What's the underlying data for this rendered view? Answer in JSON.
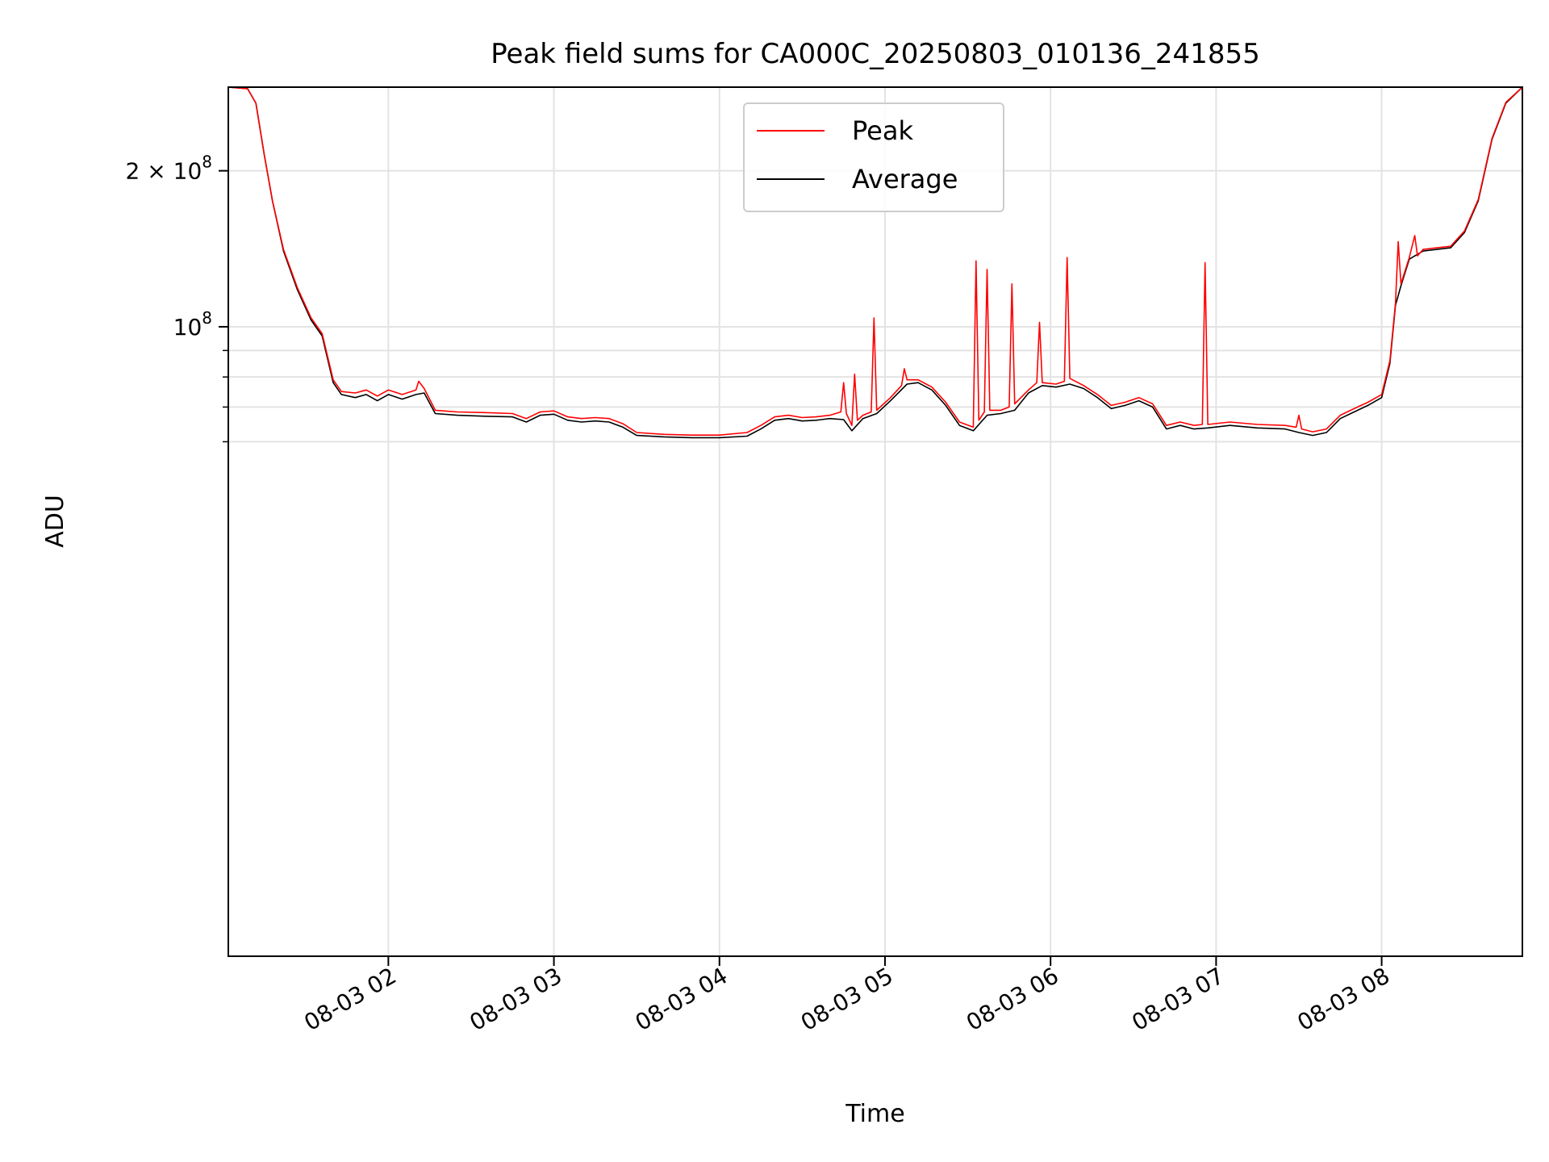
{
  "chart_data": {
    "type": "line",
    "title": "Peak field sums for CA000C_20250803_010136_241855",
    "xlabel": "Time",
    "ylabel": "ADU",
    "yscale": "log",
    "xlim": [
      "2025-08-03 01:02",
      "2025-08-03 08:51"
    ],
    "ylim": [
      6100000,
      290000000
    ],
    "grid": true,
    "legend_position": "upper-center",
    "colors": {
      "Peak": "#ff0000",
      "Average": "#000000"
    },
    "x_tick_labels": [
      "08-03 02",
      "08-03 03",
      "08-03 04",
      "08-03 05",
      "08-03 06",
      "08-03 07",
      "08-03 08"
    ],
    "x_ticks": [
      "2025-08-03 02:00",
      "2025-08-03 03:00",
      "2025-08-03 04:00",
      "2025-08-03 05:00",
      "2025-08-03 06:00",
      "2025-08-03 07:00",
      "2025-08-03 08:00"
    ],
    "y_tick_labels": [
      {
        "value": 100000000,
        "mantissa": "",
        "base": "10",
        "exp": "8"
      },
      {
        "value": 200000000,
        "mantissa": "2 × ",
        "base": "10",
        "exp": "8"
      }
    ],
    "y_minor_ticks": [
      60000000,
      70000000,
      80000000,
      90000000
    ],
    "series": [
      {
        "name": "Average",
        "points": [
          [
            "2025-08-03 01:02",
            290000000
          ],
          [
            "2025-08-03 01:09",
            288000000
          ],
          [
            "2025-08-03 01:12",
            270000000
          ],
          [
            "2025-08-03 01:15",
            215000000
          ],
          [
            "2025-08-03 01:18",
            175000000
          ],
          [
            "2025-08-03 01:22",
            140000000
          ],
          [
            "2025-08-03 01:27",
            118000000
          ],
          [
            "2025-08-03 01:32",
            103000000
          ],
          [
            "2025-08-03 01:36",
            96000000
          ],
          [
            "2025-08-03 01:40",
            78000000
          ],
          [
            "2025-08-03 01:43",
            74000000
          ],
          [
            "2025-08-03 01:48",
            73000000
          ],
          [
            "2025-08-03 01:52",
            74000000
          ],
          [
            "2025-08-03 01:56",
            72000000
          ],
          [
            "2025-08-03 02:00",
            74000000
          ],
          [
            "2025-08-03 02:05",
            72500000
          ],
          [
            "2025-08-03 02:10",
            74000000
          ],
          [
            "2025-08-03 02:13",
            74500000
          ],
          [
            "2025-08-03 02:17",
            68000000
          ],
          [
            "2025-08-03 02:25",
            67500000
          ],
          [
            "2025-08-03 02:35",
            67200000
          ],
          [
            "2025-08-03 02:45",
            67000000
          ],
          [
            "2025-08-03 02:50",
            65500000
          ],
          [
            "2025-08-03 02:55",
            67500000
          ],
          [
            "2025-08-03 03:00",
            67800000
          ],
          [
            "2025-08-03 03:05",
            66000000
          ],
          [
            "2025-08-03 03:10",
            65500000
          ],
          [
            "2025-08-03 03:15",
            65800000
          ],
          [
            "2025-08-03 03:20",
            65500000
          ],
          [
            "2025-08-03 03:25",
            64000000
          ],
          [
            "2025-08-03 03:30",
            61700000
          ],
          [
            "2025-08-03 03:40",
            61300000
          ],
          [
            "2025-08-03 03:50",
            61100000
          ],
          [
            "2025-08-03 04:00",
            61100000
          ],
          [
            "2025-08-03 04:10",
            61500000
          ],
          [
            "2025-08-03 04:15",
            63500000
          ],
          [
            "2025-08-03 04:20",
            66000000
          ],
          [
            "2025-08-03 04:25",
            66500000
          ],
          [
            "2025-08-03 04:30",
            65800000
          ],
          [
            "2025-08-03 04:35",
            66000000
          ],
          [
            "2025-08-03 04:40",
            66500000
          ],
          [
            "2025-08-03 04:45",
            66200000
          ],
          [
            "2025-08-03 04:48",
            63000000
          ],
          [
            "2025-08-03 04:52",
            66500000
          ],
          [
            "2025-08-03 04:57",
            68000000
          ],
          [
            "2025-08-03 05:02",
            72000000
          ],
          [
            "2025-08-03 05:08",
            77500000
          ],
          [
            "2025-08-03 05:12",
            78000000
          ],
          [
            "2025-08-03 05:17",
            75500000
          ],
          [
            "2025-08-03 05:22",
            70500000
          ],
          [
            "2025-08-03 05:27",
            64500000
          ],
          [
            "2025-08-03 05:32",
            63000000
          ],
          [
            "2025-08-03 05:37",
            67500000
          ],
          [
            "2025-08-03 05:42",
            68000000
          ],
          [
            "2025-08-03 05:47",
            69000000
          ],
          [
            "2025-08-03 05:52",
            74500000
          ],
          [
            "2025-08-03 05:57",
            77000000
          ],
          [
            "2025-08-03 06:02",
            76500000
          ],
          [
            "2025-08-03 06:07",
            77500000
          ],
          [
            "2025-08-03 06:12",
            76000000
          ],
          [
            "2025-08-03 06:17",
            73000000
          ],
          [
            "2025-08-03 06:22",
            69500000
          ],
          [
            "2025-08-03 06:27",
            70500000
          ],
          [
            "2025-08-03 06:32",
            72000000
          ],
          [
            "2025-08-03 06:37",
            70000000
          ],
          [
            "2025-08-03 06:42",
            63500000
          ],
          [
            "2025-08-03 06:47",
            64500000
          ],
          [
            "2025-08-03 06:52",
            63500000
          ],
          [
            "2025-08-03 06:57",
            63800000
          ],
          [
            "2025-08-03 07:05",
            64500000
          ],
          [
            "2025-08-03 07:15",
            63800000
          ],
          [
            "2025-08-03 07:25",
            63500000
          ],
          [
            "2025-08-03 07:30",
            62500000
          ],
          [
            "2025-08-03 07:35",
            61700000
          ],
          [
            "2025-08-03 07:40",
            62500000
          ],
          [
            "2025-08-03 07:45",
            66500000
          ],
          [
            "2025-08-03 07:50",
            68500000
          ],
          [
            "2025-08-03 07:55",
            70500000
          ],
          [
            "2025-08-03 08:00",
            73000000
          ],
          [
            "2025-08-03 08:03",
            85000000
          ],
          [
            "2025-08-03 08:05",
            110000000
          ],
          [
            "2025-08-03 08:07",
            120000000
          ],
          [
            "2025-08-03 08:10",
            135000000
          ],
          [
            "2025-08-03 08:15",
            140000000
          ],
          [
            "2025-08-03 08:20",
            141000000
          ],
          [
            "2025-08-03 08:25",
            142000000
          ],
          [
            "2025-08-03 08:30",
            152000000
          ],
          [
            "2025-08-03 08:35",
            175000000
          ],
          [
            "2025-08-03 08:40",
            230000000
          ],
          [
            "2025-08-03 08:45",
            270000000
          ],
          [
            "2025-08-03 08:51",
            290000000
          ]
        ]
      },
      {
        "name": "Peak",
        "points": [
          [
            "2025-08-03 01:02",
            290000000
          ],
          [
            "2025-08-03 01:09",
            288000000
          ],
          [
            "2025-08-03 01:12",
            270000000
          ],
          [
            "2025-08-03 01:15",
            215000000
          ],
          [
            "2025-08-03 01:18",
            175000000
          ],
          [
            "2025-08-03 01:22",
            141000000
          ],
          [
            "2025-08-03 01:27",
            119000000
          ],
          [
            "2025-08-03 01:32",
            104000000
          ],
          [
            "2025-08-03 01:36",
            97000000
          ],
          [
            "2025-08-03 01:40",
            79000000
          ],
          [
            "2025-08-03 01:43",
            75000000
          ],
          [
            "2025-08-03 01:48",
            74500000
          ],
          [
            "2025-08-03 01:52",
            75500000
          ],
          [
            "2025-08-03 01:56",
            73500000
          ],
          [
            "2025-08-03 02:00",
            75500000
          ],
          [
            "2025-08-03 02:05",
            74000000
          ],
          [
            "2025-08-03 02:10",
            75500000
          ],
          [
            "2025-08-03 02:11",
            78500000
          ],
          [
            "2025-08-03 02:13",
            76000000
          ],
          [
            "2025-08-03 02:17",
            69000000
          ],
          [
            "2025-08-03 02:25",
            68500000
          ],
          [
            "2025-08-03 02:35",
            68300000
          ],
          [
            "2025-08-03 02:45",
            68000000
          ],
          [
            "2025-08-03 02:50",
            66500000
          ],
          [
            "2025-08-03 02:55",
            68500000
          ],
          [
            "2025-08-03 03:00",
            68800000
          ],
          [
            "2025-08-03 03:05",
            67000000
          ],
          [
            "2025-08-03 03:10",
            66500000
          ],
          [
            "2025-08-03 03:15",
            66800000
          ],
          [
            "2025-08-03 03:20",
            66500000
          ],
          [
            "2025-08-03 03:25",
            65000000
          ],
          [
            "2025-08-03 03:30",
            62500000
          ],
          [
            "2025-08-03 03:40",
            62000000
          ],
          [
            "2025-08-03 03:50",
            61800000
          ],
          [
            "2025-08-03 04:00",
            61800000
          ],
          [
            "2025-08-03 04:10",
            62500000
          ],
          [
            "2025-08-03 04:15",
            64500000
          ],
          [
            "2025-08-03 04:20",
            67000000
          ],
          [
            "2025-08-03 04:25",
            67500000
          ],
          [
            "2025-08-03 04:30",
            66800000
          ],
          [
            "2025-08-03 04:35",
            67000000
          ],
          [
            "2025-08-03 04:40",
            67500000
          ],
          [
            "2025-08-03 04:44",
            68500000
          ],
          [
            "2025-08-03 04:45",
            78000000
          ],
          [
            "2025-08-03 04:46",
            68000000
          ],
          [
            "2025-08-03 04:48",
            64500000
          ],
          [
            "2025-08-03 04:49",
            81000000
          ],
          [
            "2025-08-03 04:50",
            66000000
          ],
          [
            "2025-08-03 04:52",
            67500000
          ],
          [
            "2025-08-03 04:55",
            68500000
          ],
          [
            "2025-08-03 04:56",
            104000000
          ],
          [
            "2025-08-03 04:57",
            69000000
          ],
          [
            "2025-08-03 05:02",
            73000000
          ],
          [
            "2025-08-03 05:06",
            77000000
          ],
          [
            "2025-08-03 05:07",
            83000000
          ],
          [
            "2025-08-03 05:08",
            79000000
          ],
          [
            "2025-08-03 05:12",
            79000000
          ],
          [
            "2025-08-03 05:17",
            76500000
          ],
          [
            "2025-08-03 05:22",
            71500000
          ],
          [
            "2025-08-03 05:27",
            65500000
          ],
          [
            "2025-08-03 05:32",
            64000000
          ],
          [
            "2025-08-03 05:33",
            134000000
          ],
          [
            "2025-08-03 05:34",
            66000000
          ],
          [
            "2025-08-03 05:36",
            68500000
          ],
          [
            "2025-08-03 05:37",
            129000000
          ],
          [
            "2025-08-03 05:38",
            69000000
          ],
          [
            "2025-08-03 05:42",
            69000000
          ],
          [
            "2025-08-03 05:45",
            70000000
          ],
          [
            "2025-08-03 05:46",
            121000000
          ],
          [
            "2025-08-03 05:47",
            71000000
          ],
          [
            "2025-08-03 05:52",
            75500000
          ],
          [
            "2025-08-03 05:55",
            78000000
          ],
          [
            "2025-08-03 05:56",
            102000000
          ],
          [
            "2025-08-03 05:57",
            78000000
          ],
          [
            "2025-08-03 06:02",
            77500000
          ],
          [
            "2025-08-03 06:05",
            78500000
          ],
          [
            "2025-08-03 06:06",
            136000000
          ],
          [
            "2025-08-03 06:07",
            79500000
          ],
          [
            "2025-08-03 06:12",
            77000000
          ],
          [
            "2025-08-03 06:17",
            74000000
          ],
          [
            "2025-08-03 06:22",
            70500000
          ],
          [
            "2025-08-03 06:27",
            71500000
          ],
          [
            "2025-08-03 06:32",
            73000000
          ],
          [
            "2025-08-03 06:37",
            71000000
          ],
          [
            "2025-08-03 06:42",
            64500000
          ],
          [
            "2025-08-03 06:47",
            65500000
          ],
          [
            "2025-08-03 06:52",
            64500000
          ],
          [
            "2025-08-03 06:55",
            64800000
          ],
          [
            "2025-08-03 06:56",
            133000000
          ],
          [
            "2025-08-03 06:57",
            64800000
          ],
          [
            "2025-08-03 07:05",
            65500000
          ],
          [
            "2025-08-03 07:15",
            64800000
          ],
          [
            "2025-08-03 07:25",
            64500000
          ],
          [
            "2025-08-03 07:29",
            64000000
          ],
          [
            "2025-08-03 07:30",
            67500000
          ],
          [
            "2025-08-03 07:31",
            63500000
          ],
          [
            "2025-08-03 07:35",
            62700000
          ],
          [
            "2025-08-03 07:40",
            63500000
          ],
          [
            "2025-08-03 07:45",
            67500000
          ],
          [
            "2025-08-03 07:50",
            69500000
          ],
          [
            "2025-08-03 07:55",
            71500000
          ],
          [
            "2025-08-03 08:00",
            74000000
          ],
          [
            "2025-08-03 08:03",
            86000000
          ],
          [
            "2025-08-03 08:05",
            111000000
          ],
          [
            "2025-08-03 08:06",
            146000000
          ],
          [
            "2025-08-03 08:07",
            121000000
          ],
          [
            "2025-08-03 08:10",
            136000000
          ],
          [
            "2025-08-03 08:12",
            150000000
          ],
          [
            "2025-08-03 08:13",
            137000000
          ],
          [
            "2025-08-03 08:15",
            141000000
          ],
          [
            "2025-08-03 08:20",
            142000000
          ],
          [
            "2025-08-03 08:25",
            143000000
          ],
          [
            "2025-08-03 08:30",
            153000000
          ],
          [
            "2025-08-03 08:35",
            176000000
          ],
          [
            "2025-08-03 08:40",
            231000000
          ],
          [
            "2025-08-03 08:45",
            271000000
          ],
          [
            "2025-08-03 08:51",
            290000000
          ]
        ]
      }
    ],
    "legend": [
      {
        "name": "Peak",
        "color": "#ff0000"
      },
      {
        "name": "Average",
        "color": "#000000"
      }
    ]
  }
}
